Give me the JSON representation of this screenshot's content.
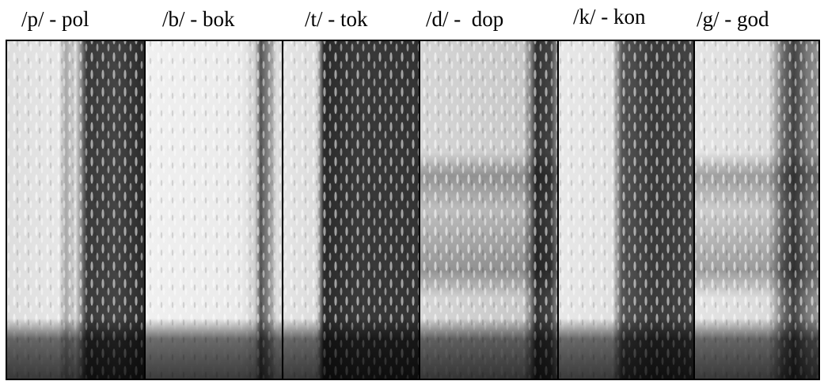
{
  "panels": [
    {
      "label": "/p/ - pol"
    },
    {
      "label": "/b/ - bok"
    },
    {
      "label": "/t/ - tok"
    },
    {
      "label": "/d/ -  dop"
    },
    {
      "label": "/k/ - kon"
    },
    {
      "label": "/g/ - god"
    }
  ]
}
